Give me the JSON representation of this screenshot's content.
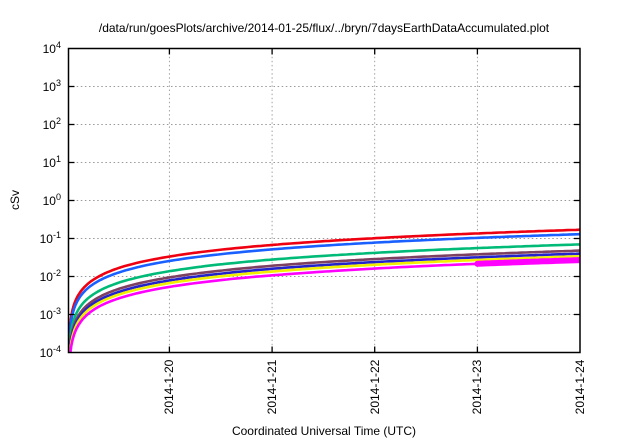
{
  "title": "/data/run/goesPlots/archive/2014-01-25/flux/../bryn/7daysEarthDataAccumulated.plot",
  "x_axis": {
    "label": "Coordinated Universal Time (UTC)",
    "ticks": [
      {
        "t": 0.983,
        "label": "2014-1-20"
      },
      {
        "t": 1.983,
        "label": "2014-1-21"
      },
      {
        "t": 2.983,
        "label": "2014-1-22"
      },
      {
        "t": 3.983,
        "label": "2014-1-23"
      },
      {
        "t": 4.983,
        "label": "2014-1-24"
      }
    ]
  },
  "y_axis": {
    "label": "cSv",
    "tick_exponents": [
      4,
      3,
      2,
      1,
      0,
      -1,
      -2,
      -3,
      -4
    ]
  },
  "colors": {
    "background": "#ffffff",
    "border": "#000000",
    "grid": "#999999",
    "text": "#000000"
  },
  "chart_data": {
    "type": "line",
    "title": "/data/run/goesPlots/archive/2014-01-25/flux/../bryn/7daysEarthDataAccumulated.plot",
    "xlabel": "Coordinated Universal Time (UTC)",
    "ylabel": "cSv",
    "x_unit": "days since 2014-01-19 00:00 UTC",
    "xlim": [
      0,
      4.983
    ],
    "ylim": [
      0.0001,
      10000.0
    ],
    "y_scale": "log",
    "grid": "dotted",
    "legend": "none",
    "series": [
      {
        "name": "red",
        "color": "#ee0011",
        "width": 2.6,
        "points": [
          [
            0.003,
            0.000102
          ],
          [
            0.01,
            0.000341
          ],
          [
            0.03,
            0.00102
          ],
          [
            0.1,
            0.00341
          ],
          [
            0.3,
            0.0102
          ],
          [
            0.5,
            0.0171
          ],
          [
            1,
            0.0341
          ],
          [
            1.5,
            0.0512
          ],
          [
            2,
            0.0682
          ],
          [
            2.5,
            0.0853
          ],
          [
            3,
            0.1023
          ],
          [
            3.5,
            0.1194
          ],
          [
            4,
            0.1365
          ],
          [
            4.5,
            0.1535
          ],
          [
            4.983,
            0.17
          ]
        ]
      },
      {
        "name": "blue",
        "color": "#1a5fff",
        "width": 2.6,
        "points": [
          [
            0.003,
            7.8e-05
          ],
          [
            0.01,
            0.000261
          ],
          [
            0.03,
            0.000783
          ],
          [
            0.1,
            0.00261
          ],
          [
            0.3,
            0.00783
          ],
          [
            0.5,
            0.013
          ],
          [
            1,
            0.0261
          ],
          [
            1.5,
            0.0391
          ],
          [
            2,
            0.0522
          ],
          [
            2.5,
            0.0652
          ],
          [
            3,
            0.0783
          ],
          [
            3.5,
            0.0913
          ],
          [
            4,
            0.1044
          ],
          [
            4.5,
            0.1174
          ],
          [
            4.983,
            0.13
          ]
        ]
      },
      {
        "name": "sea-green",
        "color": "#00bb78",
        "width": 2.6,
        "points": [
          [
            0.003,
            4.2e-05
          ],
          [
            0.01,
            0.00014
          ],
          [
            0.03,
            0.000421
          ],
          [
            0.1,
            0.0014
          ],
          [
            0.3,
            0.00421
          ],
          [
            0.5,
            0.00702
          ],
          [
            1,
            0.014
          ],
          [
            1.5,
            0.0211
          ],
          [
            2,
            0.0281
          ],
          [
            2.5,
            0.0351
          ],
          [
            3,
            0.0421
          ],
          [
            3.5,
            0.0492
          ],
          [
            4,
            0.0562
          ],
          [
            4.5,
            0.0632
          ],
          [
            4.983,
            0.07
          ]
        ]
      },
      {
        "name": "maroon",
        "color": "#7e4060",
        "width": 2.6,
        "points": [
          [
            0.003,
            2.9e-05
          ],
          [
            0.01,
            9.6e-05
          ],
          [
            0.03,
            0.000289
          ],
          [
            0.1,
            0.000963
          ],
          [
            0.3,
            0.00289
          ],
          [
            0.5,
            0.00482
          ],
          [
            1,
            0.00963
          ],
          [
            1.5,
            0.0144
          ],
          [
            2,
            0.0193
          ],
          [
            2.5,
            0.0241
          ],
          [
            3,
            0.0289
          ],
          [
            3.5,
            0.0337
          ],
          [
            4,
            0.0385
          ],
          [
            4.5,
            0.0433
          ],
          [
            4.983,
            0.048
          ]
        ]
      },
      {
        "name": "navy",
        "color": "#2323cc",
        "width": 2.6,
        "points": [
          [
            0.003,
            2.4e-05
          ],
          [
            0.01,
            8e-05
          ],
          [
            0.03,
            0.000241
          ],
          [
            0.1,
            0.000803
          ],
          [
            0.3,
            0.00241
          ],
          [
            0.5,
            0.00401
          ],
          [
            1,
            0.00803
          ],
          [
            1.5,
            0.012
          ],
          [
            2,
            0.0161
          ],
          [
            2.5,
            0.0201
          ],
          [
            3,
            0.0241
          ],
          [
            3.5,
            0.0281
          ],
          [
            4,
            0.0321
          ],
          [
            4.5,
            0.0361
          ],
          [
            4.983,
            0.04
          ]
        ]
      },
      {
        "name": "yellow",
        "color": "#f2ee00",
        "width": 2.6,
        "points": [
          [
            0.003,
            2e-05
          ],
          [
            0.01,
            6.8e-05
          ],
          [
            0.03,
            0.000205
          ],
          [
            0.1,
            0.000682
          ],
          [
            0.3,
            0.00205
          ],
          [
            0.5,
            0.00341
          ],
          [
            1,
            0.00682
          ],
          [
            1.5,
            0.0102
          ],
          [
            2,
            0.0136
          ],
          [
            2.5,
            0.0171
          ],
          [
            3,
            0.0205
          ],
          [
            3.5,
            0.0239
          ],
          [
            4,
            0.0273
          ],
          [
            4.5,
            0.0307
          ],
          [
            4.983,
            0.034
          ]
        ]
      },
      {
        "name": "magenta",
        "color": "#ff00ff",
        "width": 2.6,
        "points": [
          [
            0.003,
            1.6e-05
          ],
          [
            0.01,
            5.4e-05
          ],
          [
            0.03,
            0.000163
          ],
          [
            0.1,
            0.000542
          ],
          [
            0.3,
            0.00163
          ],
          [
            0.5,
            0.00271
          ],
          [
            1,
            0.00542
          ],
          [
            1.5,
            0.00813
          ],
          [
            2,
            0.0108
          ],
          [
            2.5,
            0.0135
          ],
          [
            3,
            0.0163
          ],
          [
            3.5,
            0.019
          ],
          [
            4,
            0.0217
          ],
          [
            4.5,
            0.0244
          ],
          [
            4.983,
            0.027
          ]
        ]
      },
      {
        "name": "magenta-thick-last-day",
        "color": "#ff00ff",
        "width": 6,
        "points": [
          [
            3.983,
            0.0216
          ],
          [
            4.5,
            0.0244
          ],
          [
            4.983,
            0.027
          ]
        ]
      }
    ]
  }
}
